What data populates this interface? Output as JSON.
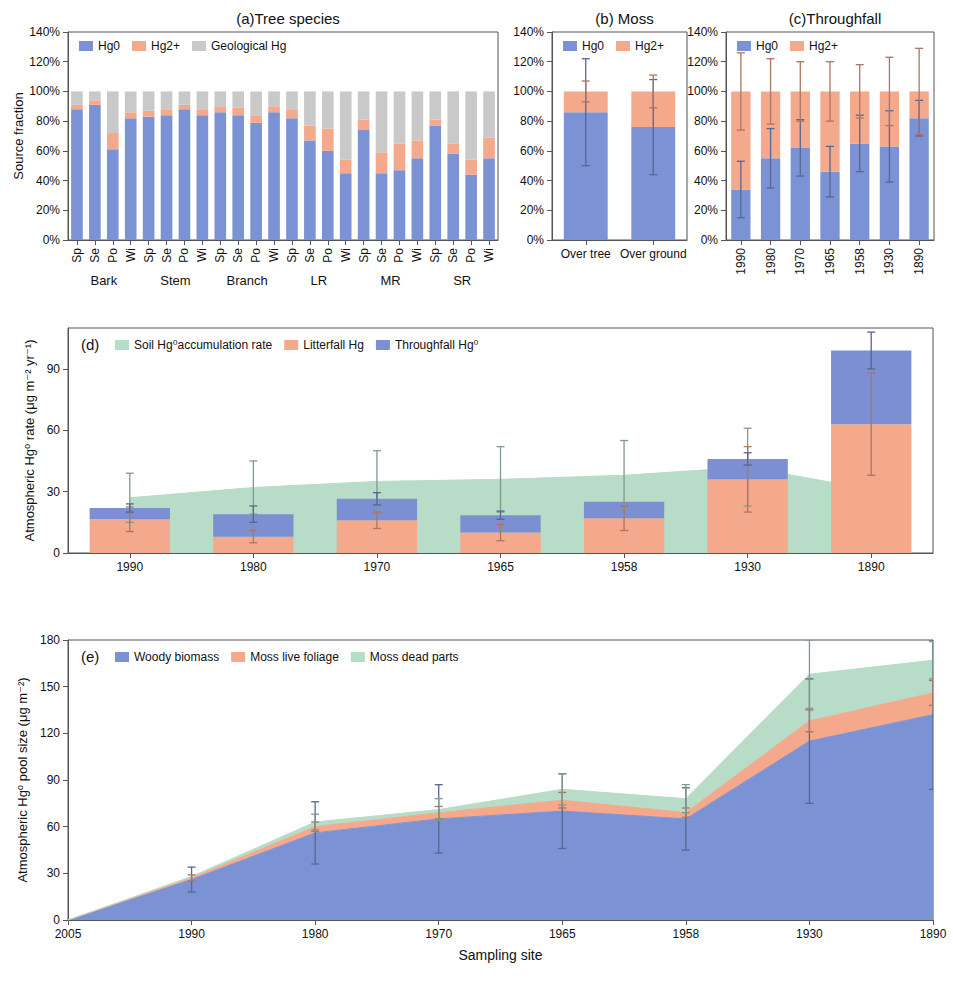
{
  "chart_data": [
    {
      "type": "bar",
      "title": "(a)Tree species",
      "ylabel": "Source fraction",
      "categories": [
        "Sp",
        "Se",
        "Po",
        "Wi",
        "Sp",
        "Se",
        "Po",
        "Wi",
        "Sp",
        "Se",
        "Po",
        "Wi",
        "Sp",
        "Se",
        "Po",
        "Wi",
        "Sp",
        "Se",
        "Po",
        "Wi",
        "Sp",
        "Se",
        "Po",
        "Wi"
      ],
      "groups": [
        "Bark",
        "Stem",
        "Branch",
        "LR",
        "MR",
        "SR"
      ],
      "series": [
        {
          "name": "Hg0",
          "color": "#7b93d4",
          "values": [
            88,
            91,
            61,
            82,
            83,
            84,
            88,
            84,
            86,
            84,
            79,
            86,
            82,
            67,
            60,
            45,
            74,
            45,
            47,
            55,
            77,
            58,
            44,
            55
          ]
        },
        {
          "name": "Hg2+",
          "color": "#f4a88c",
          "values": [
            3,
            3,
            11,
            4,
            4,
            4,
            3,
            4,
            4,
            5,
            5,
            4,
            6,
            10,
            15,
            9,
            7,
            14,
            18,
            12,
            4,
            7,
            10,
            14
          ]
        },
        {
          "name": "Geological Hg",
          "color": "#c9c9c9",
          "values": [
            9,
            6,
            28,
            14,
            13,
            12,
            9,
            12,
            10,
            11,
            16,
            10,
            12,
            23,
            25,
            46,
            19,
            41,
            35,
            33,
            19,
            35,
            46,
            31
          ]
        }
      ],
      "ylim": [
        0,
        140
      ],
      "yticks": [
        {
          "value": 0,
          "label": "0%"
        },
        {
          "value": 20,
          "label": "20%"
        },
        {
          "value": 40,
          "label": "40%"
        },
        {
          "value": 60,
          "label": "60%"
        },
        {
          "value": 80,
          "label": "80%"
        },
        {
          "value": 100,
          "label": "100%"
        },
        {
          "value": 120,
          "label": "120%"
        },
        {
          "value": 140,
          "label": "140%"
        }
      ],
      "stacked": true,
      "legend": "top-left",
      "grid": false
    },
    {
      "type": "bar",
      "title": "(b) Moss",
      "categories": [
        "Over tree",
        "Over ground"
      ],
      "series": [
        {
          "name": "Hg0",
          "color": "#7b93d4",
          "values": [
            86,
            76
          ],
          "errors": [
            36,
            32
          ]
        },
        {
          "name": "Hg2+",
          "color": "#f4a88c",
          "values": [
            14,
            24
          ],
          "errors": [
            7,
            11
          ]
        }
      ],
      "ylim": [
        0,
        140
      ],
      "yticks": [
        {
          "value": 0,
          "label": "0%"
        },
        {
          "value": 20,
          "label": "20%"
        },
        {
          "value": 40,
          "label": "40%"
        },
        {
          "value": 60,
          "label": "60%"
        },
        {
          "value": 80,
          "label": "80%"
        },
        {
          "value": 100,
          "label": "100%"
        },
        {
          "value": 120,
          "label": "120%"
        },
        {
          "value": 140,
          "label": "140%"
        }
      ],
      "stacked": true,
      "legend": "top-left",
      "grid": false
    },
    {
      "type": "bar",
      "title": "(c)Throughfall",
      "categories": [
        "1990",
        "1980",
        "1970",
        "1965",
        "1958",
        "1930",
        "1890"
      ],
      "series": [
        {
          "name": "Hg0",
          "color": "#7b93d4",
          "values": [
            34,
            55,
            62,
            46,
            65,
            63,
            82
          ],
          "errors": [
            19,
            20,
            19,
            17,
            19,
            24,
            12
          ]
        },
        {
          "name": "Hg2+",
          "color": "#f4a88c",
          "values": [
            66,
            45,
            38,
            54,
            35,
            37,
            18
          ],
          "errors": [
            26,
            22,
            20,
            20,
            18,
            23,
            29
          ]
        }
      ],
      "ylim": [
        0,
        140
      ],
      "yticks": [
        {
          "value": 0,
          "label": "0%"
        },
        {
          "value": 20,
          "label": "20%"
        },
        {
          "value": 40,
          "label": "40%"
        },
        {
          "value": 60,
          "label": "60%"
        },
        {
          "value": 80,
          "label": "80%"
        },
        {
          "value": 100,
          "label": "100%"
        },
        {
          "value": 120,
          "label": "120%"
        },
        {
          "value": 140,
          "label": "140%"
        }
      ],
      "stacked": true,
      "legend": "top-left",
      "grid": false
    },
    {
      "type": "bar",
      "title": "(d)",
      "ylabel": "Atmospheric Hg⁰ rate (μg m⁻² yr⁻¹)",
      "categories": [
        "1990",
        "1980",
        "1970",
        "1965",
        "1958",
        "1930",
        "1890"
      ],
      "series": [
        {
          "name": "Soil Hg⁰accumulation rate",
          "type": "area",
          "color": "#b7dcc7",
          "values": [
            27,
            32,
            35,
            36,
            38,
            42,
            31
          ],
          "errors": [
            12,
            13,
            15,
            16,
            17,
            19,
            null
          ]
        },
        {
          "name": "Litterfall Hg",
          "type": "bar",
          "color": "#f4a88c",
          "values": [
            16.5,
            8,
            16,
            10,
            17,
            36,
            63
          ],
          "errors": [
            6,
            3,
            4,
            4,
            6,
            16,
            25
          ]
        },
        {
          "name": "Throughfall Hg⁰",
          "type": "bar",
          "color": "#7b8fd2",
          "values": [
            5.5,
            11,
            10.5,
            8.5,
            8,
            10,
            36
          ],
          "errors": [
            2,
            4,
            3,
            2,
            null,
            3,
            9
          ]
        }
      ],
      "ylim": [
        0,
        110
      ],
      "yticks": [
        0,
        30,
        60,
        90
      ],
      "stacked": true,
      "legend": "top-left",
      "grid": false
    },
    {
      "type": "area",
      "title": "(e)",
      "ylabel": "Atmospheric Hg⁰ pool size (μg m⁻²)",
      "xlabel": "Sampling site",
      "categories": [
        "2005",
        "1990",
        "1980",
        "1970",
        "1965",
        "1958",
        "1930",
        "1890"
      ],
      "series": [
        {
          "name": "Woody biomass",
          "color": "#7b93d4",
          "values": [
            0,
            26,
            56,
            65,
            70,
            65,
            115,
            132
          ],
          "errors": [
            null,
            8,
            20,
            22,
            24,
            20,
            40,
            48
          ]
        },
        {
          "name": "Moss live foliage",
          "color": "#f4a88c",
          "values": [
            0,
            1,
            4,
            4,
            7,
            4,
            13,
            14
          ],
          "errors": [
            null,
            2,
            3,
            4,
            5,
            3,
            7,
            8
          ]
        },
        {
          "name": "Moss dead parts",
          "color": "#b7dcc7",
          "values": [
            0,
            1,
            3,
            2,
            7,
            9,
            30,
            21
          ],
          "errors": [
            null,
            null,
            5,
            7,
            10,
            9,
            22,
            12
          ]
        }
      ],
      "ylim": [
        0,
        180
      ],
      "yticks": [
        0,
        30,
        60,
        90,
        120,
        150,
        180
      ],
      "stacked": true,
      "legend": "top-left",
      "grid": false
    }
  ]
}
